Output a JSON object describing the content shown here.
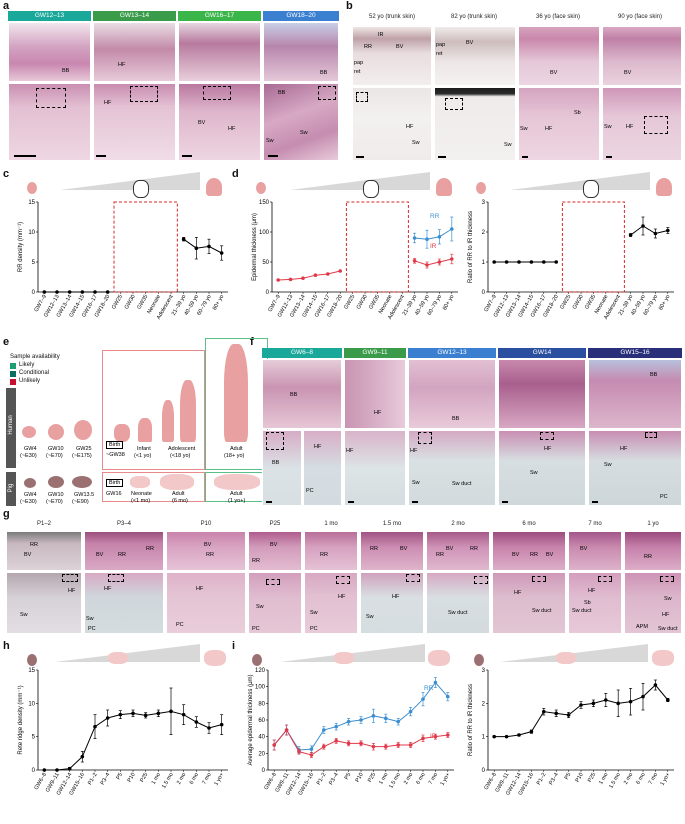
{
  "colors": {
    "he_pink": "#d99ab8",
    "he_light": "#e9c6d6",
    "he_dark": "#b86a99",
    "tab_teal": "#1aa89a",
    "tab_green": "#3a9b4a",
    "tab_lgreen": "#39b54a",
    "tab_blue": "#3b7fd0",
    "tab_navy": "#2a2f7a",
    "rr_blue": "#3b8fd1",
    "ir_red": "#e03a4a",
    "red_dash": "#d62828",
    "human_box": "#e98a8a",
    "adult_box": "#5bbf8a",
    "likely": "#1d9e75",
    "conditional": "#0d6e60",
    "unlikely": "#c8102e"
  },
  "panel_letters": [
    "a",
    "b",
    "c",
    "d",
    "e",
    "f",
    "g",
    "h",
    "i"
  ],
  "panel_a": {
    "tabs": [
      "GW12–13",
      "GW13–14",
      "GW16–17",
      "GW18–20"
    ],
    "labels": [
      "BB",
      "HF",
      "BB",
      "BV",
      "HF",
      "HF",
      "Sw",
      "BB",
      "Sw"
    ]
  },
  "panel_b": {
    "headers": [
      "52 yo (trunk skin)",
      "82 yo (trunk skin)",
      "36 yo (face skin)",
      "90 yo (face skin)"
    ],
    "labels": [
      "IR",
      "RR",
      "BV",
      "pap",
      "ret",
      "pap",
      "ret",
      "BV",
      "BV",
      "BV",
      "HF",
      "Sw",
      "Sw",
      "Sw",
      "HF",
      "Sb",
      "Sw",
      "HF"
    ]
  },
  "panel_c": {
    "chart_data": {
      "type": "line",
      "ylabel": "RR density (mm⁻¹)",
      "ylim": [
        0,
        15
      ],
      "yticks": [
        0,
        5,
        10,
        15
      ],
      "categories": [
        "GW7–9",
        "GW12–13",
        "GW13–14",
        "GW14–15",
        "GW16–17",
        "GW18–20",
        "GW25",
        "GW30",
        "GW35",
        "Neonate",
        "Adolescent",
        "21–39 yo",
        "40–59 yo",
        "60–79 yo",
        "80+ yo"
      ],
      "series": [
        {
          "name": "fetal",
          "x": [
            0,
            1,
            2,
            3,
            4,
            5
          ],
          "values": [
            0,
            0,
            0,
            0,
            0,
            0
          ]
        },
        {
          "name": "adult",
          "x": [
            11,
            12,
            13,
            14
          ],
          "values": [
            8.8,
            7.3,
            7.6,
            6.5
          ],
          "err": [
            0.3,
            1.8,
            1.2,
            1.2
          ]
        }
      ],
      "missing_range": [
        "GW25",
        "Adolescent"
      ]
    }
  },
  "panel_d": {
    "chart_data": {
      "type": "line",
      "ylabel": "Epidermal thickness (μm)",
      "ylim": [
        0,
        150
      ],
      "yticks": [
        0,
        50,
        100,
        150
      ],
      "categories": [
        "GW7–9",
        "GW12–13",
        "GW13–14",
        "GW14–15",
        "GW16–17",
        "GW18–20",
        "GW25",
        "GW30",
        "GW35",
        "Neonate",
        "Adolescent",
        "21–39 yo",
        "40–59 yo",
        "60–79 yo",
        "80+ yo"
      ],
      "series": [
        {
          "name": "fetal",
          "x": [
            0,
            1,
            2,
            3,
            4,
            5
          ],
          "values": [
            20,
            21,
            23,
            28,
            30,
            35
          ]
        },
        {
          "name": "RR",
          "x": [
            11,
            12,
            13,
            14
          ],
          "values": [
            90,
            88,
            92,
            105
          ],
          "err": [
            8,
            15,
            12,
            20
          ]
        },
        {
          "name": "IR",
          "x": [
            11,
            12,
            13,
            14
          ],
          "values": [
            52,
            45,
            50,
            55
          ],
          "err": [
            4,
            5,
            5,
            8
          ]
        }
      ],
      "legend": [
        "RR",
        "IR"
      ]
    }
  },
  "panel_d2": {
    "chart_data": {
      "type": "line",
      "ylabel": "Ratio of RR to IR thickness",
      "ylim": [
        0,
        3
      ],
      "yticks": [
        0,
        1,
        2,
        3
      ],
      "categories": [
        "GW7–9",
        "GW12–13",
        "GW13–14",
        "GW14–15",
        "GW16–17",
        "GW18–20",
        "GW25",
        "GW30",
        "GW35",
        "Neonate",
        "Adolescent",
        "21–39 yo",
        "40–59 yo",
        "60–79 yo",
        "80+ yo"
      ],
      "series": [
        {
          "name": "fetal",
          "x": [
            0,
            1,
            2,
            3,
            4,
            5
          ],
          "values": [
            1,
            1,
            1,
            1,
            1,
            1
          ]
        },
        {
          "name": "adult",
          "x": [
            11,
            12,
            13,
            14
          ],
          "values": [
            1.9,
            2.2,
            1.95,
            2.05
          ],
          "err": [
            0.05,
            0.3,
            0.15,
            0.1
          ]
        }
      ]
    }
  },
  "panel_e": {
    "legend_title": "Sample availability",
    "legend": [
      "Likely",
      "Conditional",
      "Unlikely"
    ],
    "row_labels": [
      "Human",
      "Pig"
    ],
    "human_stages": [
      "GW4",
      "(~E30)",
      "GW10",
      "(~E70)",
      "GW25",
      "(~E175)",
      "Birth",
      "~GW38",
      "Infant",
      "(<1 yo)",
      "Adolescent",
      "(<18 yo)",
      "Adult",
      "(18+ yo)"
    ],
    "pig_stages": [
      "GW4",
      "(~E30)",
      "GW10",
      "(~E70)",
      "GW13.5",
      "(~E90)",
      "Birth",
      "GW16",
      "Neonate",
      "(<1 mo)",
      "Adult",
      "(6 mo)",
      "Adult",
      "(1 yo+)"
    ]
  },
  "panel_f": {
    "tabs": [
      "GW6–8",
      "GW9–11",
      "GW12–13",
      "GW14",
      "GW15–16"
    ],
    "labels": [
      "BB",
      "HF",
      "BB",
      "BB",
      "HF",
      "BB",
      "HF",
      "PC",
      "HF",
      "Sw",
      "Sw duct",
      "HF",
      "Sw",
      "HF",
      "Sw",
      "PC"
    ]
  },
  "panel_g": {
    "headers": [
      "P1–2",
      "P3–4",
      "P10",
      "P25",
      "1 mo",
      "1.5 mo",
      "2 mo",
      "6 mo",
      "7 mo",
      "1 yo"
    ],
    "labels": [
      "RR",
      "BV",
      "BV",
      "RR",
      "RR",
      "BV",
      "RR",
      "RR",
      "BV",
      "RR",
      "RR",
      "BV",
      "RR",
      "BV",
      "RR",
      "BV",
      "RR",
      "BV",
      "BV",
      "RR",
      "HF",
      "Sw",
      "HF",
      "Sw",
      "PC",
      "HF",
      "PC",
      "Sw",
      "PC",
      "Sw",
      "HF",
      "PC",
      "HF",
      "Sw",
      "Sw duct",
      "HF",
      "Sw duct",
      "Sb",
      "Sw duct",
      "HF",
      "Sw",
      "APM",
      "HF",
      "Sw duct"
    ]
  },
  "panel_h": {
    "chart_data": {
      "type": "line",
      "ylabel": "Rete ridge density (mm⁻¹)",
      "ylim": [
        0,
        15
      ],
      "yticks": [
        0,
        5,
        10,
        15
      ],
      "categories": [
        "GW6–8",
        "GW9–11",
        "GW12–14",
        "GW15–16",
        "P1–2",
        "P3–4",
        "P5",
        "P10",
        "P25",
        "1 mo",
        "1.5 mo",
        "2 mo",
        "6 mo",
        "7 mo",
        "1 yo+"
      ],
      "series": [
        {
          "name": "pig",
          "values": [
            0,
            0,
            0.2,
            2,
            6.5,
            7.8,
            8.3,
            8.5,
            8.2,
            8.5,
            8.8,
            8.3,
            7.2,
            6.3,
            6.8
          ],
          "err": [
            0,
            0,
            0.2,
            0.8,
            1.8,
            1.2,
            0.6,
            0.5,
            0.4,
            0.5,
            3.5,
            1.5,
            0.8,
            0.8,
            1.5
          ]
        }
      ]
    }
  },
  "panel_i": {
    "chart_data": {
      "type": "line",
      "ylabel": "Average epidermal thickness (μm)",
      "ylim": [
        0,
        120
      ],
      "yticks": [
        0,
        20,
        40,
        60,
        80,
        100,
        120
      ],
      "categories": [
        "GW6–8",
        "GW9–11",
        "GW12–14",
        "GW15–16",
        "P1–2",
        "P3–4",
        "P5",
        "P10",
        "P25",
        "1 mo",
        "1.5 mo",
        "2 mo",
        "6 mo",
        "7 mo",
        "1 yo+"
      ],
      "series": [
        {
          "name": "RR",
          "values": [
            30,
            48,
            24,
            25,
            48,
            52,
            58,
            60,
            65,
            62,
            58,
            70,
            85,
            105,
            88
          ],
          "err": [
            6,
            6,
            4,
            4,
            4,
            4,
            4,
            4,
            8,
            5,
            4,
            5,
            8,
            6,
            5
          ]
        },
        {
          "name": "IR",
          "values": [
            30,
            48,
            22,
            18,
            28,
            35,
            32,
            32,
            28,
            28,
            30,
            30,
            38,
            40,
            42
          ],
          "err": [
            6,
            6,
            3,
            3,
            3,
            3,
            3,
            3,
            4,
            3,
            3,
            3,
            4,
            3,
            3
          ]
        }
      ],
      "legend": [
        "RR",
        "IR"
      ]
    }
  },
  "panel_i2": {
    "chart_data": {
      "type": "line",
      "ylabel": "Ratio of RR to IR thickness",
      "ylim": [
        0,
        3
      ],
      "yticks": [
        0,
        1,
        2,
        3
      ],
      "categories": [
        "GW6–8",
        "GW9–11",
        "GW12–14",
        "GW15–16",
        "P1–2",
        "P3–4",
        "P5",
        "P10",
        "P25",
        "1 mo",
        "1.5 mo",
        "2 mo",
        "6 mo",
        "7 mo",
        "1 yo+"
      ],
      "series": [
        {
          "name": "ratio",
          "values": [
            1,
            1,
            1.05,
            1.15,
            1.75,
            1.7,
            1.65,
            1.95,
            2.0,
            2.1,
            2.0,
            2.05,
            2.2,
            2.55,
            2.1
          ],
          "err": [
            0,
            0,
            0.03,
            0.05,
            0.1,
            0.1,
            0.08,
            0.1,
            0.1,
            0.2,
            0.4,
            0.4,
            0.4,
            0.15,
            0.05
          ]
        }
      ]
    }
  }
}
